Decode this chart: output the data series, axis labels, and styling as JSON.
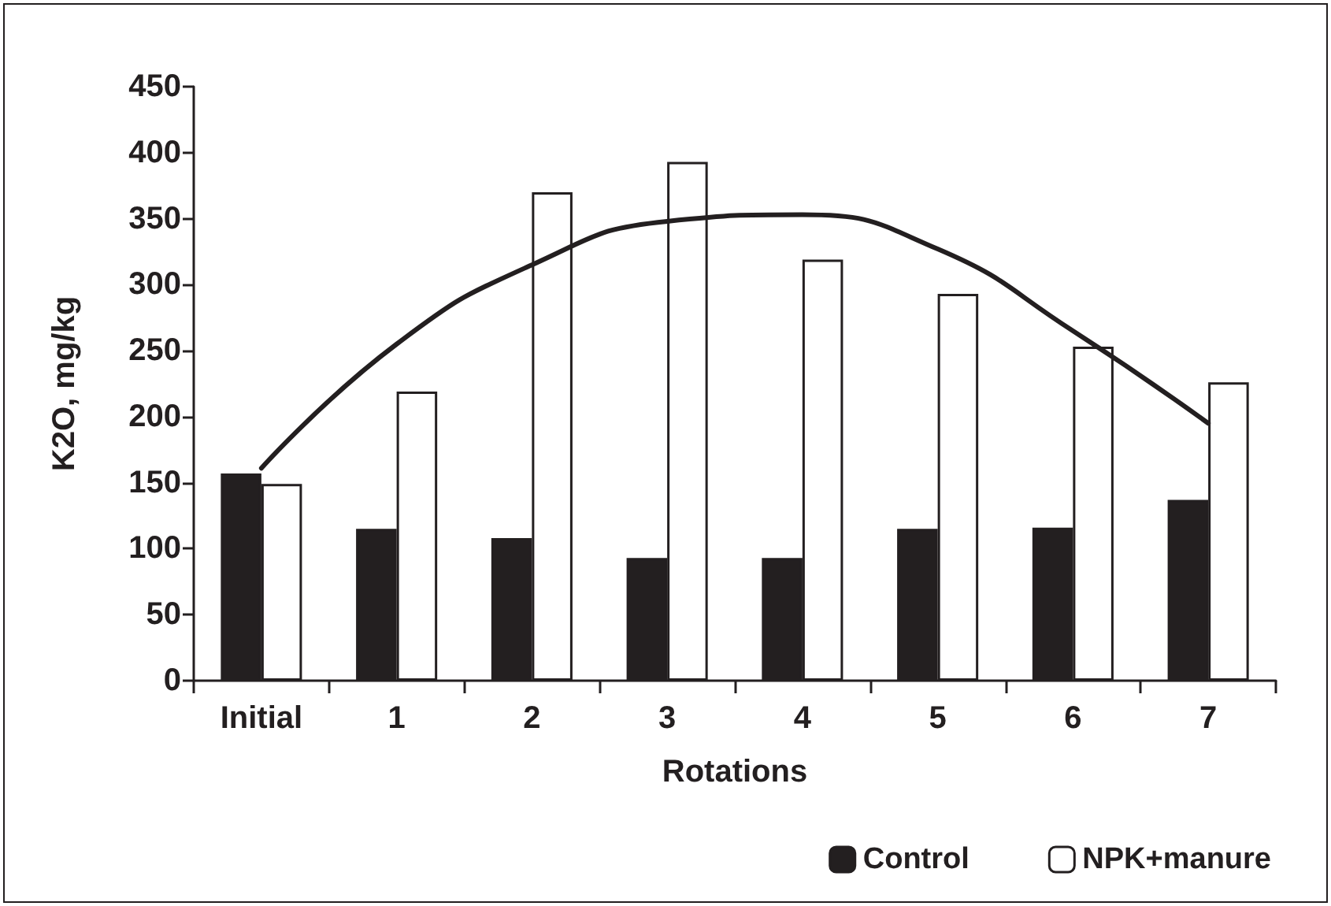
{
  "chart_data": {
    "type": "bar",
    "xlabel": "Rotations",
    "ylabel": "K2O, mg/kg",
    "categories": [
      "Initial",
      "1",
      "2",
      "3",
      "4",
      "5",
      "6",
      "7"
    ],
    "series": [
      {
        "name": "Control",
        "color": "#231f20",
        "values": [
          157,
          115,
          108,
          93,
          93,
          115,
          116,
          137
        ]
      },
      {
        "name": "NPK+manure",
        "color": "#ffffff",
        "values": [
          149,
          219,
          370,
          393,
          319,
          293,
          253,
          226
        ]
      },
      {
        "type": "line",
        "color": "#231f20",
        "values": [
          161,
          255,
          315,
          348,
          353,
          327,
          265,
          195
        ]
      }
    ],
    "ylim": [
      0,
      450
    ],
    "yticks": [
      0,
      50,
      100,
      150,
      200,
      250,
      300,
      350,
      400,
      450
    ],
    "grid": false,
    "legend": "bottom right",
    "marker": "none",
    "line_style": "solid"
  }
}
